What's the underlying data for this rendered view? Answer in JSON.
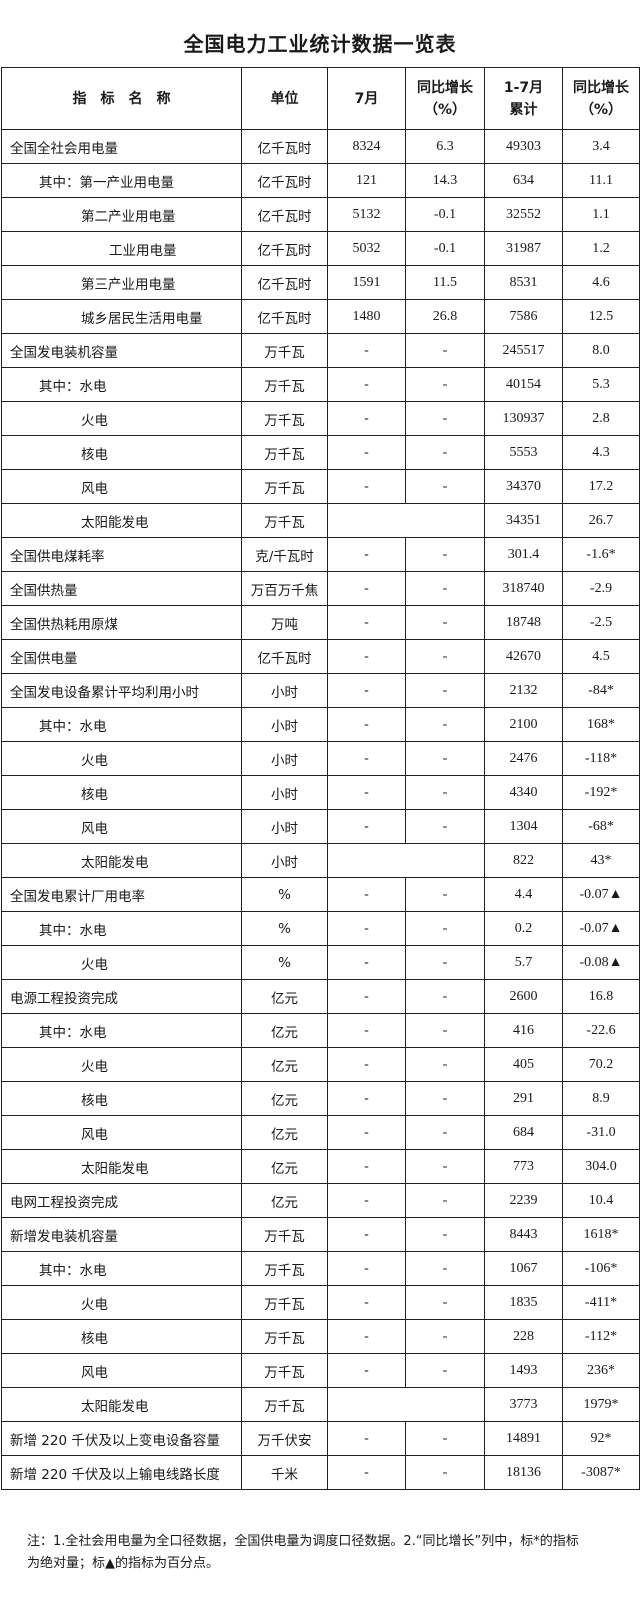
{
  "title": "全国电力工业统计数据一览表",
  "headers": [
    "指　标　名　称",
    "单位",
    "7月",
    "同比增长\n（%）",
    "1-7月\n累计",
    "同比增长\n（%）"
  ],
  "rows": [
    {
      "name": "全国全社会用电量",
      "indent": 0,
      "unit": "亿千瓦时",
      "m": "8324",
      "my": "6.3",
      "c": "49303",
      "cy": "3.4"
    },
    {
      "name": "其中：第一产业用电量",
      "indent": 1,
      "unit": "亿千瓦时",
      "m": "121",
      "my": "14.3",
      "c": "634",
      "cy": "11.1"
    },
    {
      "name": "第二产业用电量",
      "indent": 2,
      "unit": "亿千瓦时",
      "m": "5132",
      "my": "-0.1",
      "c": "32552",
      "cy": "1.1"
    },
    {
      "name": "工业用电量",
      "indent": 3,
      "unit": "亿千瓦时",
      "m": "5032",
      "my": "-0.1",
      "c": "31987",
      "cy": "1.2"
    },
    {
      "name": "第三产业用电量",
      "indent": 2,
      "unit": "亿千瓦时",
      "m": "1591",
      "my": "11.5",
      "c": "8531",
      "cy": "4.6"
    },
    {
      "name": "城乡居民生活用电量",
      "indent": 2,
      "unit": "亿千瓦时",
      "m": "1480",
      "my": "26.8",
      "c": "7586",
      "cy": "12.5"
    },
    {
      "name": "全国发电装机容量",
      "indent": 0,
      "unit": "万千瓦",
      "m": "-",
      "my": "-",
      "c": "245517",
      "cy": "8.0"
    },
    {
      "name": "其中：水电",
      "indent": 1,
      "unit": "万千瓦",
      "m": "-",
      "my": "-",
      "c": "40154",
      "cy": "5.3"
    },
    {
      "name": "火电",
      "indent": 2,
      "unit": "万千瓦",
      "m": "-",
      "my": "-",
      "c": "130937",
      "cy": "2.8"
    },
    {
      "name": "核电",
      "indent": 2,
      "unit": "万千瓦",
      "m": "-",
      "my": "-",
      "c": "5553",
      "cy": "4.3"
    },
    {
      "name": "风电",
      "indent": 2,
      "unit": "万千瓦",
      "m": "-",
      "my": "-",
      "c": "34370",
      "cy": "17.2"
    },
    {
      "name": "太阳能发电",
      "indent": 2,
      "unit": "万千瓦",
      "blank": true,
      "c": "34351",
      "cy": "26.7"
    },
    {
      "name": "全国供电煤耗率",
      "indent": 0,
      "unit": "克/千瓦时",
      "m": "-",
      "my": "-",
      "c": "301.4",
      "cy": "-1.6*"
    },
    {
      "name": "全国供热量",
      "indent": 0,
      "unit": "万百万千焦",
      "m": "-",
      "my": "-",
      "c": "318740",
      "cy": "-2.9"
    },
    {
      "name": "全国供热耗用原煤",
      "indent": 0,
      "unit": "万吨",
      "m": "-",
      "my": "-",
      "c": "18748",
      "cy": "-2.5"
    },
    {
      "name": "全国供电量",
      "indent": 0,
      "unit": "亿千瓦时",
      "m": "-",
      "my": "-",
      "c": "42670",
      "cy": "4.5"
    },
    {
      "name": "全国发电设备累计平均利用小时",
      "indent": 0,
      "unit": "小时",
      "m": "-",
      "my": "-",
      "c": "2132",
      "cy": "-84*"
    },
    {
      "name": "其中：水电",
      "indent": 1,
      "unit": "小时",
      "m": "-",
      "my": "-",
      "c": "2100",
      "cy": "168*"
    },
    {
      "name": "火电",
      "indent": 2,
      "unit": "小时",
      "m": "-",
      "my": "-",
      "c": "2476",
      "cy": "-118*"
    },
    {
      "name": "核电",
      "indent": 2,
      "unit": "小时",
      "m": "-",
      "my": "-",
      "c": "4340",
      "cy": "-192*"
    },
    {
      "name": "风电",
      "indent": 2,
      "unit": "小时",
      "m": "-",
      "my": "-",
      "c": "1304",
      "cy": "-68*"
    },
    {
      "name": "太阳能发电",
      "indent": 2,
      "unit": "小时",
      "blank": true,
      "c": "822",
      "cy": "43*"
    },
    {
      "name": "全国发电累计厂用电率",
      "indent": 0,
      "unit": "%",
      "m": "-",
      "my": "-",
      "c": "4.4",
      "cy": "-0.07▲"
    },
    {
      "name": "其中：水电",
      "indent": 1,
      "unit": "%",
      "m": "-",
      "my": "-",
      "c": "0.2",
      "cy": "-0.07▲"
    },
    {
      "name": "火电",
      "indent": 2,
      "unit": "%",
      "m": "-",
      "my": "-",
      "c": "5.7",
      "cy": "-0.08▲"
    },
    {
      "name": "电源工程投资完成",
      "indent": 0,
      "unit": "亿元",
      "m": "-",
      "my": "-",
      "c": "2600",
      "cy": "16.8"
    },
    {
      "name": "其中：水电",
      "indent": 1,
      "unit": "亿元",
      "m": "-",
      "my": "-",
      "c": "416",
      "cy": "-22.6"
    },
    {
      "name": "火电",
      "indent": 2,
      "unit": "亿元",
      "m": "-",
      "my": "-",
      "c": "405",
      "cy": "70.2"
    },
    {
      "name": "核电",
      "indent": 2,
      "unit": "亿元",
      "m": "-",
      "my": "-",
      "c": "291",
      "cy": "8.9"
    },
    {
      "name": "风电",
      "indent": 2,
      "unit": "亿元",
      "m": "-",
      "my": "-",
      "c": "684",
      "cy": "-31.0"
    },
    {
      "name": "太阳能发电",
      "indent": 2,
      "unit": "亿元",
      "m": "-",
      "my": "-",
      "c": "773",
      "cy": "304.0"
    },
    {
      "name": "电网工程投资完成",
      "indent": 0,
      "unit": "亿元",
      "m": "-",
      "my": "-",
      "c": "2239",
      "cy": "10.4"
    },
    {
      "name": "新增发电装机容量",
      "indent": 0,
      "unit": "万千瓦",
      "m": "-",
      "my": "-",
      "c": "8443",
      "cy": "1618*"
    },
    {
      "name": "其中：水电",
      "indent": 1,
      "unit": "万千瓦",
      "m": "-",
      "my": "-",
      "c": "1067",
      "cy": "-106*"
    },
    {
      "name": "火电",
      "indent": 2,
      "unit": "万千瓦",
      "m": "-",
      "my": "-",
      "c": "1835",
      "cy": "-411*"
    },
    {
      "name": "核电",
      "indent": 2,
      "unit": "万千瓦",
      "m": "-",
      "my": "-",
      "c": "228",
      "cy": "-112*"
    },
    {
      "name": "风电",
      "indent": 2,
      "unit": "万千瓦",
      "m": "-",
      "my": "-",
      "c": "1493",
      "cy": "236*"
    },
    {
      "name": "太阳能发电",
      "indent": 2,
      "unit": "万千瓦",
      "blank": true,
      "c": "3773",
      "cy": "1979*"
    },
    {
      "name": "新增 220 千伏及以上变电设备容量",
      "indent": 0,
      "unit": "万千伏安",
      "m": "-",
      "my": "-",
      "c": "14891",
      "cy": "92*"
    },
    {
      "name": "新增 220 千伏及以上输电线路长度",
      "indent": 0,
      "unit": "千米",
      "m": "-",
      "my": "-",
      "c": "18136",
      "cy": "-3087*"
    }
  ],
  "note_line1": "注：1.全社会用电量为全口径数据，全国供电量为调度口径数据。2.“同比增长”列中，标*的指标",
  "note_line2": "为绝对量；标▲的指标为百分点。"
}
